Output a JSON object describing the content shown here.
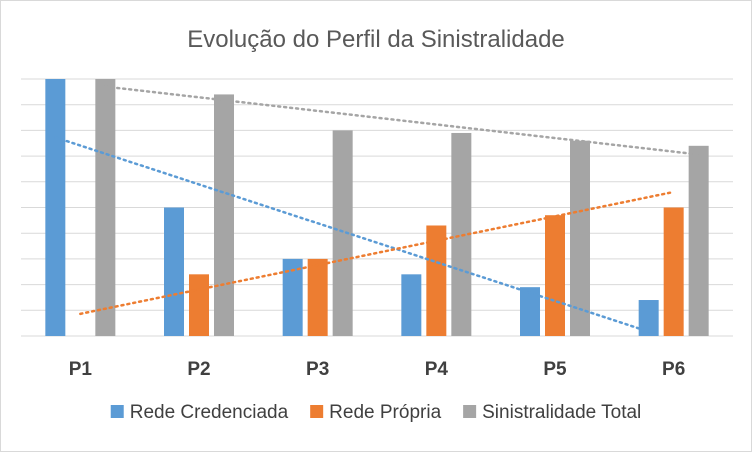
{
  "chart_data": {
    "type": "bar",
    "title": "Evolução do Perfil da Sinistralidade",
    "categories": [
      "P1",
      "P2",
      "P3",
      "P4",
      "P5",
      "P6"
    ],
    "ylim": [
      0,
      10
    ],
    "grid": true,
    "legend_position": "bottom",
    "series": [
      {
        "name": "Rede Credenciada",
        "color": "#5b9bd5",
        "values": [
          10,
          5,
          3,
          2.4,
          1.9,
          1.4
        ]
      },
      {
        "name": "Rede Própria",
        "color": "#ed7d31",
        "values": [
          0,
          2.4,
          3,
          4.3,
          4.7,
          5
        ]
      },
      {
        "name": "Sinistralidade Total",
        "color": "#a5a5a5",
        "values": [
          10,
          9.4,
          8,
          7.9,
          7.6,
          7.4
        ]
      }
    ],
    "trendlines": [
      {
        "series": "Rede Credenciada",
        "type": "linear",
        "style": "dotted"
      },
      {
        "series": "Rede Própria",
        "type": "linear",
        "style": "dotted"
      },
      {
        "series": "Sinistralidade Total",
        "type": "linear",
        "style": "dotted"
      }
    ]
  }
}
